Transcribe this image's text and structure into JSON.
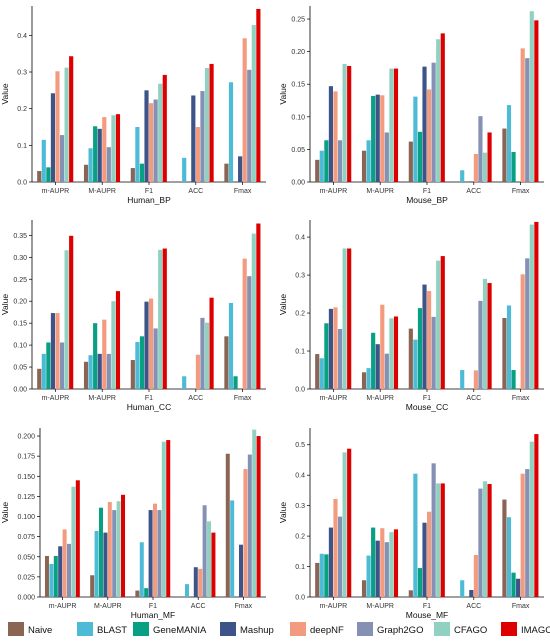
{
  "legend": [
    {
      "name": "Naive",
      "color": "#8B6554"
    },
    {
      "name": "BLAST",
      "color": "#4EBBD6"
    },
    {
      "name": "GeneMANIA",
      "color": "#08A083"
    },
    {
      "name": "Mashup",
      "color": "#3C5488"
    },
    {
      "name": "deepNF",
      "color": "#F39B7F"
    },
    {
      "name": "Graph2GO",
      "color": "#8491B4"
    },
    {
      "name": "CFAGO",
      "color": "#91D1C2"
    },
    {
      "name": "IMAGO",
      "color": "#DC0000"
    }
  ],
  "chart_data": [
    {
      "type": "bar",
      "xlabel": "Human_BP",
      "ylabel": "Value",
      "categories": [
        "m-AUPR",
        "M-AUPR",
        "F1",
        "ACC",
        "Fmax"
      ],
      "ylim": [
        0,
        0.48
      ],
      "yticks": [
        0.0,
        0.1,
        0.2,
        0.3,
        0.4
      ],
      "yfmt": 1,
      "series": [
        {
          "name": "Naive",
          "values": [
            0.03,
            0.047,
            0.038,
            0,
            0.05
          ]
        },
        {
          "name": "BLAST",
          "values": [
            0.115,
            0.092,
            0.15,
            0.066,
            0.272
          ]
        },
        {
          "name": "GeneMANIA",
          "values": [
            0.04,
            0.152,
            0.05,
            0,
            0
          ]
        },
        {
          "name": "Mashup",
          "values": [
            0.242,
            0.145,
            0.25,
            0.236,
            0.07
          ]
        },
        {
          "name": "deepNF",
          "values": [
            0.302,
            0.177,
            0.215,
            0.15,
            0.392
          ]
        },
        {
          "name": "Graph2GO",
          "values": [
            0.128,
            0.095,
            0.225,
            0.248,
            0.306
          ]
        },
        {
          "name": "CFAGO",
          "values": [
            0.312,
            0.182,
            0.268,
            0.311,
            0.428
          ]
        },
        {
          "name": "IMAGO",
          "values": [
            0.343,
            0.185,
            0.292,
            0.322,
            0.472
          ]
        }
      ]
    },
    {
      "type": "bar",
      "xlabel": "Mouse_BP",
      "ylabel": "Value",
      "categories": [
        "m-AUPR",
        "M-AUPR",
        "F1",
        "ACC",
        "Fmax"
      ],
      "ylim": [
        0,
        0.27
      ],
      "yticks": [
        0.0,
        0.05,
        0.1,
        0.15,
        0.2,
        0.25
      ],
      "yfmt": 2,
      "series": [
        {
          "name": "Naive",
          "values": [
            0.034,
            0.048,
            0.062,
            0,
            0.082
          ]
        },
        {
          "name": "BLAST",
          "values": [
            0.048,
            0.064,
            0.131,
            0.018,
            0.118
          ]
        },
        {
          "name": "GeneMANIA",
          "values": [
            0.064,
            0.132,
            0.077,
            0,
            0.046
          ]
        },
        {
          "name": "Mashup",
          "values": [
            0.147,
            0.134,
            0.177,
            0.001,
            0
          ]
        },
        {
          "name": "deepNF",
          "values": [
            0.139,
            0.133,
            0.142,
            0.043,
            0.205
          ]
        },
        {
          "name": "Graph2GO",
          "values": [
            0.064,
            0.076,
            0.183,
            0.101,
            0.19
          ]
        },
        {
          "name": "CFAGO",
          "values": [
            0.181,
            0.174,
            0.219,
            0.045,
            0.262
          ]
        },
        {
          "name": "IMAGO",
          "values": [
            0.178,
            0.174,
            0.228,
            0.076,
            0.248
          ]
        }
      ]
    },
    {
      "type": "bar",
      "xlabel": "Human_CC",
      "ylabel": "Value",
      "categories": [
        "m-AUPR",
        "M-AUPR",
        "F1",
        "ACC",
        "Fmax"
      ],
      "ylim": [
        0,
        0.385
      ],
      "yticks": [
        0.0,
        0.05,
        0.1,
        0.15,
        0.2,
        0.25,
        0.3,
        0.35
      ],
      "yfmt": 2,
      "series": [
        {
          "name": "Naive",
          "values": [
            0.046,
            0.062,
            0.066,
            0,
            0.12
          ]
        },
        {
          "name": "BLAST",
          "values": [
            0.08,
            0.077,
            0.107,
            0.029,
            0.196
          ]
        },
        {
          "name": "GeneMANIA",
          "values": [
            0.106,
            0.15,
            0.12,
            0,
            0.029
          ]
        },
        {
          "name": "Mashup",
          "values": [
            0.173,
            0.08,
            0.199,
            0.001,
            0
          ]
        },
        {
          "name": "deepNF",
          "values": [
            0.173,
            0.158,
            0.206,
            0.078,
            0.297
          ]
        },
        {
          "name": "Graph2GO",
          "values": [
            0.106,
            0.08,
            0.138,
            0.162,
            0.257
          ]
        },
        {
          "name": "CFAGO",
          "values": [
            0.316,
            0.2,
            0.317,
            0.151,
            0.354
          ]
        },
        {
          "name": "IMAGO",
          "values": [
            0.349,
            0.223,
            0.32,
            0.208,
            0.377
          ]
        }
      ]
    },
    {
      "type": "bar",
      "xlabel": "Mouse_CC",
      "ylabel": "Value",
      "categories": [
        "m-AUPR",
        "M-AUPR",
        "F1",
        "ACC",
        "Fmax"
      ],
      "ylim": [
        0,
        0.445
      ],
      "yticks": [
        0.0,
        0.1,
        0.2,
        0.3,
        0.4
      ],
      "yfmt": 1,
      "series": [
        {
          "name": "Naive",
          "values": [
            0.092,
            0.044,
            0.159,
            0,
            0.187
          ]
        },
        {
          "name": "BLAST",
          "values": [
            0.081,
            0.055,
            0.13,
            0.05,
            0.22
          ]
        },
        {
          "name": "GeneMANIA",
          "values": [
            0.173,
            0.148,
            0.213,
            0,
            0.05
          ]
        },
        {
          "name": "Mashup",
          "values": [
            0.211,
            0.118,
            0.275,
            0,
            0
          ]
        },
        {
          "name": "deepNF",
          "values": [
            0.215,
            0.222,
            0.258,
            0.049,
            0.302
          ]
        },
        {
          "name": "Graph2GO",
          "values": [
            0.158,
            0.093,
            0.19,
            0.232,
            0.344
          ]
        },
        {
          "name": "CFAGO",
          "values": [
            0.37,
            0.186,
            0.338,
            0.29,
            0.433
          ]
        },
        {
          "name": "IMAGO",
          "values": [
            0.37,
            0.191,
            0.35,
            0.279,
            0.44
          ]
        }
      ]
    },
    {
      "type": "bar",
      "xlabel": "Human_MF",
      "ylabel": "Value",
      "categories": [
        "m-AUPR",
        "M-AUPR",
        "F1",
        "ACC",
        "Fmax"
      ],
      "ylim": [
        0,
        0.21
      ],
      "yticks": [
        0.0,
        0.025,
        0.05,
        0.075,
        0.1,
        0.125,
        0.15,
        0.175,
        0.2
      ],
      "yfmt": 3,
      "series": [
        {
          "name": "Naive",
          "values": [
            0.051,
            0.027,
            0.008,
            0,
            0.178
          ]
        },
        {
          "name": "BLAST",
          "values": [
            0.041,
            0.082,
            0.068,
            0.016,
            0.12
          ]
        },
        {
          "name": "GeneMANIA",
          "values": [
            0.051,
            0.111,
            0.011,
            0,
            0
          ]
        },
        {
          "name": "Mashup",
          "values": [
            0.063,
            0.08,
            0.108,
            0.037,
            0.065
          ]
        },
        {
          "name": "deepNF",
          "values": [
            0.084,
            0.118,
            0.116,
            0.035,
            0.159
          ]
        },
        {
          "name": "Graph2GO",
          "values": [
            0.066,
            0.108,
            0.108,
            0.114,
            0.177
          ]
        },
        {
          "name": "CFAGO",
          "values": [
            0.137,
            0.119,
            0.193,
            0.094,
            0.208
          ]
        },
        {
          "name": "IMAGO",
          "values": [
            0.145,
            0.127,
            0.195,
            0.08,
            0.2
          ]
        }
      ]
    },
    {
      "type": "bar",
      "xlabel": "Mouse_MF",
      "ylabel": "Value",
      "categories": [
        "m-AUPR",
        "M-AUPR",
        "F1",
        "ACC",
        "Fmax"
      ],
      "ylim": [
        0,
        0.555
      ],
      "yticks": [
        0.0,
        0.1,
        0.2,
        0.3,
        0.4,
        0.5
      ],
      "yfmt": 1,
      "series": [
        {
          "name": "Naive",
          "values": [
            0.112,
            0.055,
            0.022,
            0,
            0.32
          ]
        },
        {
          "name": "BLAST",
          "values": [
            0.142,
            0.136,
            0.405,
            0.055,
            0.262
          ]
        },
        {
          "name": "GeneMANIA",
          "values": [
            0.14,
            0.228,
            0.095,
            0,
            0.08
          ]
        },
        {
          "name": "Mashup",
          "values": [
            0.228,
            0.185,
            0.244,
            0.023,
            0.06
          ]
        },
        {
          "name": "deepNF",
          "values": [
            0.322,
            0.226,
            0.28,
            0.138,
            0.405
          ]
        },
        {
          "name": "Graph2GO",
          "values": [
            0.264,
            0.18,
            0.439,
            0.356,
            0.42
          ]
        },
        {
          "name": "CFAGO",
          "values": [
            0.475,
            0.213,
            0.373,
            0.38,
            0.51
          ]
        },
        {
          "name": "IMAGO",
          "values": [
            0.487,
            0.222,
            0.373,
            0.371,
            0.535
          ]
        }
      ]
    }
  ]
}
